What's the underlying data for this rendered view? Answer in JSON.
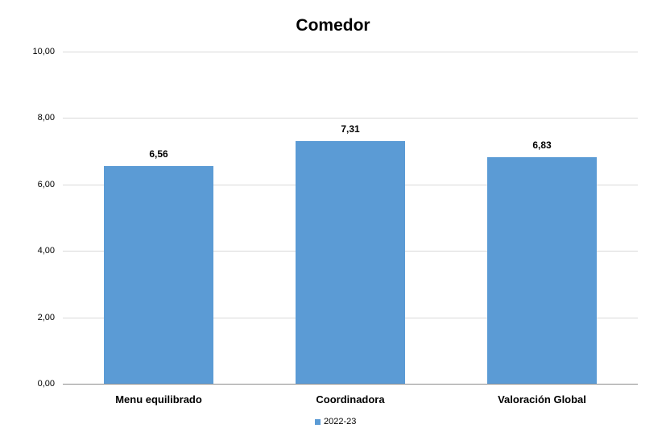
{
  "chart_data": {
    "type": "bar",
    "title": "Comedor",
    "categories": [
      "Menu equilibrado",
      "Coordinadora",
      "Valoración Global"
    ],
    "series": [
      {
        "name": "2022-23",
        "values": [
          6.56,
          7.31,
          6.83
        ],
        "color": "#5b9bd5"
      }
    ],
    "data_labels": [
      "6,56",
      "7,31",
      "6,83"
    ],
    "xlabel": "",
    "ylabel": "",
    "ylim": [
      0,
      10
    ],
    "yticks": [
      "0,00",
      "2,00",
      "4,00",
      "6,00",
      "8,00",
      "10,00"
    ],
    "grid": true,
    "legend_position": "bottom"
  }
}
